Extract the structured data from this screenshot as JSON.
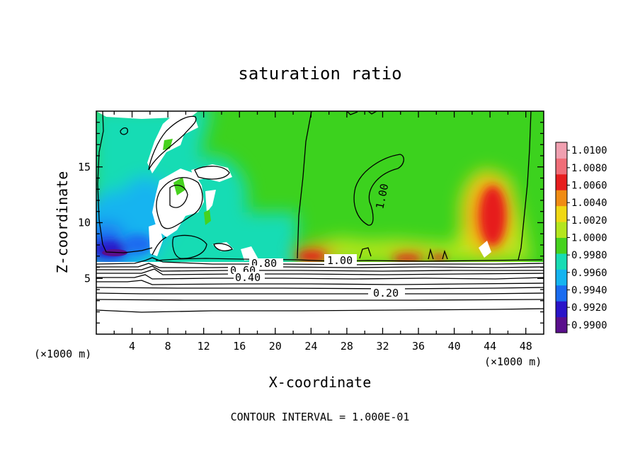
{
  "chart_data": {
    "type": "heatmap",
    "title": "saturation ratio",
    "xlabel": "X-coordinate",
    "ylabel": "Z-coordinate",
    "x_unit_left": "(×1000 m)",
    "x_unit_right": "(×1000 m)",
    "xlim": [
      0,
      50
    ],
    "ylim": [
      0,
      20
    ],
    "x_ticks": [
      4,
      8,
      12,
      16,
      20,
      24,
      28,
      32,
      36,
      40,
      44,
      48
    ],
    "y_ticks": [
      5,
      10,
      15
    ],
    "colorbar": {
      "levels": [
        0.99,
        0.992,
        0.994,
        0.996,
        0.998,
        1.0,
        1.002,
        1.004,
        1.006,
        1.008,
        1.01
      ],
      "labels": [
        "0.9900",
        "0.9920",
        "0.9940",
        "0.9960",
        "0.9980",
        "1.0000",
        "1.0020",
        "1.0040",
        "1.0060",
        "1.0080",
        "1.0100"
      ],
      "colors": [
        "#5a0f8c",
        "#2a14c8",
        "#1a6cf0",
        "#14b4f0",
        "#18dcb4",
        "#46d21e",
        "#b4e61e",
        "#f0d814",
        "#f08c14",
        "#e61e1e",
        "#f06e78",
        "#f0a0b0"
      ]
    },
    "contour_labels": [
      "1.00",
      "1.00",
      "0.80",
      "0.60",
      "0.40",
      "0.20"
    ],
    "footer": "CONTOUR INTERVAL = 1.000E-01"
  }
}
